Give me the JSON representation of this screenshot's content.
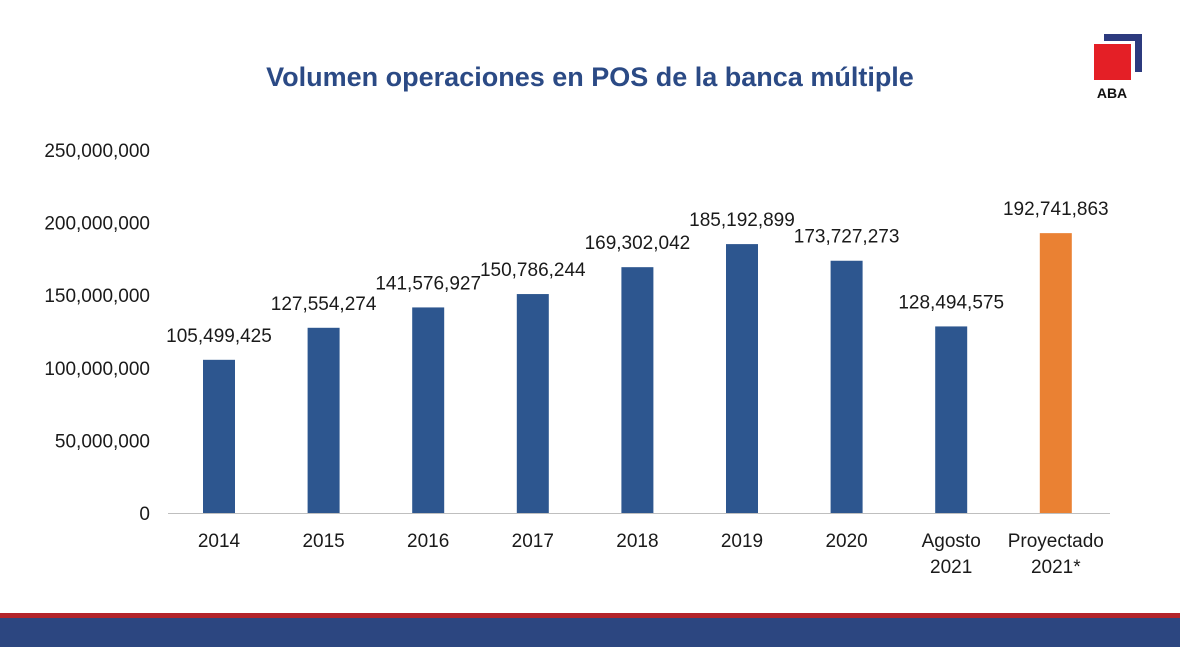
{
  "logo": {
    "text": "ABA"
  },
  "chart_data": {
    "type": "bar",
    "title": "Volumen operaciones en POS de la banca múltiple",
    "xlabel": "",
    "ylabel": "",
    "ylim": [
      0,
      250000000
    ],
    "yticks": [
      0,
      50000000,
      100000000,
      150000000,
      200000000,
      250000000
    ],
    "ytick_labels": [
      "0",
      "50,000,000",
      "100,000,000",
      "150,000,000",
      "200,000,000",
      "250,000,000"
    ],
    "categories": [
      [
        "2014"
      ],
      [
        "2015"
      ],
      [
        "2016"
      ],
      [
        "2017"
      ],
      [
        "2018"
      ],
      [
        "2019"
      ],
      [
        "2020"
      ],
      [
        "Agosto",
        "2021"
      ],
      [
        "Proyectado",
        "2021*"
      ]
    ],
    "values": [
      105499425,
      127554274,
      141576927,
      150786244,
      169302042,
      185192899,
      173727273,
      128494575,
      192741863
    ],
    "value_labels": [
      "105,499,425",
      "127,554,274",
      "141,576,927",
      "150,786,244",
      "169,302,042",
      "185,192,899",
      "173,727,273",
      "128,494,575",
      "192,741,863"
    ],
    "colors": [
      "#2d568f",
      "#2d568f",
      "#2d568f",
      "#2d568f",
      "#2d568f",
      "#2d568f",
      "#2d568f",
      "#2d568f",
      "#ea8133"
    ],
    "grid": false,
    "legend": "none"
  }
}
